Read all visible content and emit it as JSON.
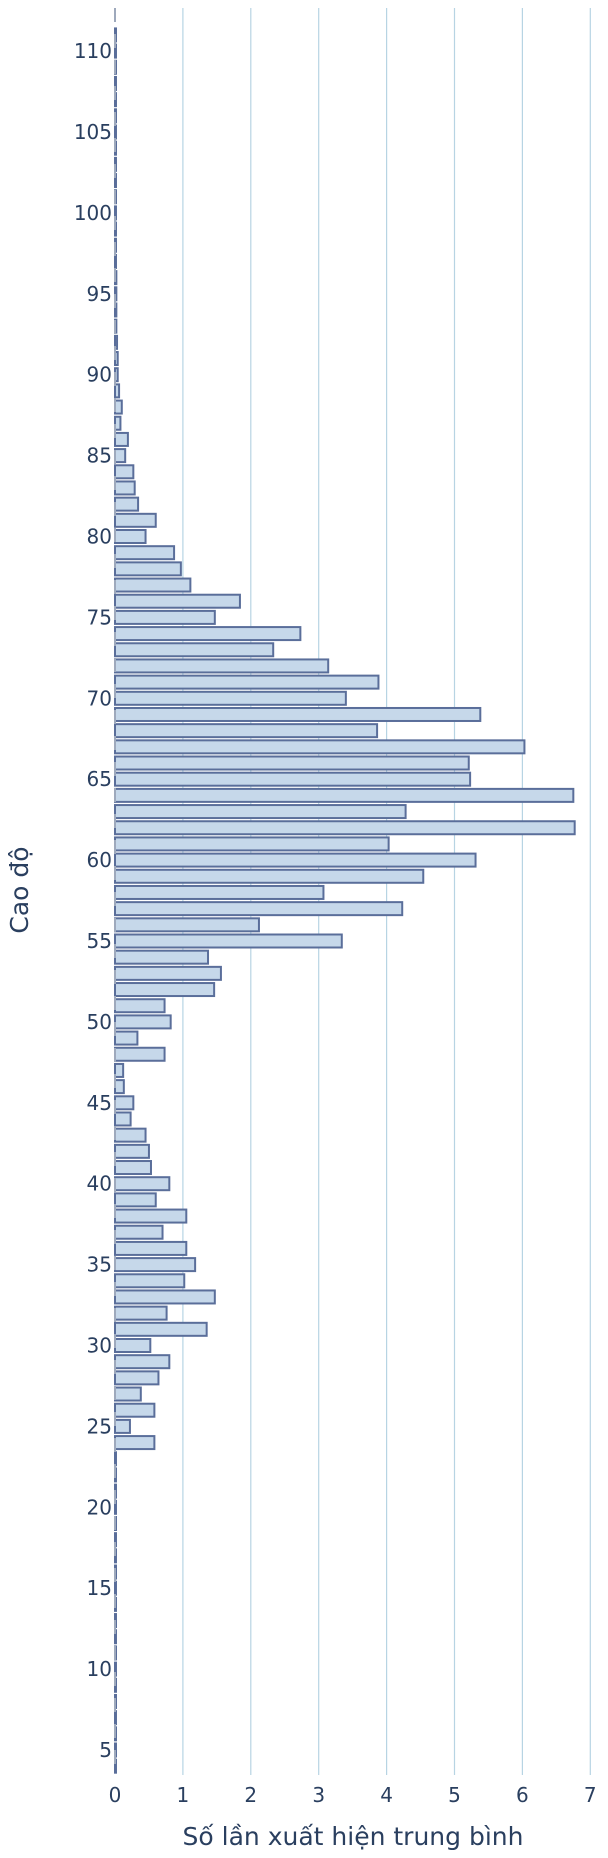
{
  "chart_data": {
    "type": "bar",
    "orientation": "horizontal",
    "title": "",
    "xlabel": "Số lần xuất hiện trung bình",
    "ylabel": "Cao độ",
    "xlim": [
      0,
      7
    ],
    "ylim": [
      3.5,
      112
    ],
    "x_ticks": [
      "0",
      "1",
      "2",
      "3",
      "4",
      "5",
      "6",
      "7"
    ],
    "y_ticks": [
      "5",
      "10",
      "15",
      "20",
      "25",
      "30",
      "35",
      "40",
      "45",
      "50",
      "55",
      "60",
      "65",
      "70",
      "75",
      "80",
      "85",
      "90",
      "95",
      "100",
      "105",
      "110"
    ],
    "grid": "vertical",
    "colors": {
      "bar_fill": "#c6d8ea",
      "bar_stroke": "#5a6e9a",
      "grid": "#b7d4e3",
      "zero_line": "#9ea9bc",
      "text": "#2a3f5f"
    },
    "series": [
      {
        "pitch": [
          4,
          5,
          6,
          7,
          8,
          9,
          10,
          11,
          12,
          13,
          14,
          15,
          16,
          17,
          18,
          19,
          20,
          21,
          22,
          23,
          24,
          25,
          26,
          27,
          28,
          29,
          30,
          31,
          32,
          33,
          34,
          35,
          36,
          37,
          38,
          39,
          40,
          41,
          42,
          43,
          44,
          45,
          46,
          47,
          48,
          49,
          50,
          51,
          52,
          53,
          54,
          55,
          56,
          57,
          58,
          59,
          60,
          61,
          62,
          63,
          64,
          65,
          66,
          67,
          68,
          69,
          70,
          71,
          72,
          73,
          74,
          75,
          76,
          77,
          78,
          79,
          80,
          81,
          82,
          83,
          84,
          85,
          86,
          87,
          88,
          89,
          90,
          91,
          92,
          93,
          94,
          95,
          96,
          97,
          98,
          99,
          100,
          101,
          102,
          103,
          104,
          105,
          106,
          107,
          108,
          109,
          110,
          111
        ],
        "count": [
          0.01,
          0.01,
          0.01,
          0.01,
          0.01,
          0.01,
          0.01,
          0.01,
          0.01,
          0.01,
          0.01,
          0.01,
          0.01,
          0.01,
          0.01,
          0.01,
          0.01,
          0.01,
          0.01,
          0.01,
          0.58,
          0.22,
          0.58,
          0.38,
          0.64,
          0.8,
          0.52,
          1.35,
          0.76,
          1.47,
          1.02,
          1.18,
          1.05,
          0.7,
          1.05,
          0.6,
          0.8,
          0.53,
          0.5,
          0.45,
          0.23,
          0.27,
          0.13,
          0.12,
          0.73,
          0.33,
          0.82,
          0.73,
          1.46,
          1.56,
          1.37,
          3.34,
          2.12,
          4.23,
          3.07,
          4.54,
          5.31,
          4.03,
          6.77,
          4.28,
          6.75,
          5.23,
          5.21,
          6.03,
          3.86,
          5.38,
          3.4,
          3.88,
          3.14,
          2.33,
          2.73,
          1.47,
          1.84,
          1.11,
          0.97,
          0.87,
          0.45,
          0.6,
          0.34,
          0.29,
          0.27,
          0.15,
          0.19,
          0.08,
          0.1,
          0.06,
          0.04,
          0.04,
          0.03,
          0.02,
          0.02,
          0.02,
          0.02,
          0.01,
          0.01,
          0.01,
          0.01,
          0.01,
          0.01,
          0.01,
          0.01,
          0.01,
          0.01,
          0.01,
          0.01,
          0.01,
          0.01,
          0.01
        ]
      }
    ]
  }
}
